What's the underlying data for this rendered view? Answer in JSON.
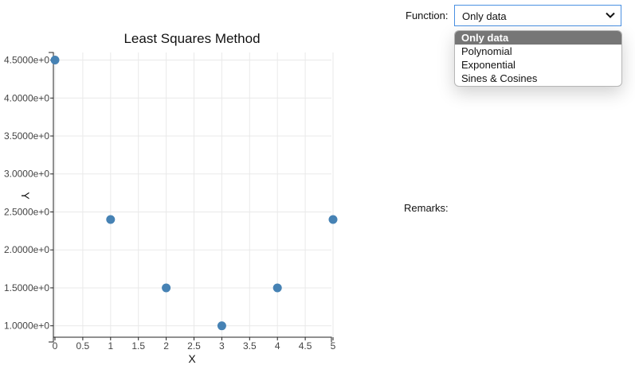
{
  "controls": {
    "function_label": "Function:",
    "selected_function": "Only data",
    "options": [
      "Only data",
      "Polynomial",
      "Exponential",
      "Sines & Cosines"
    ],
    "remarks_label": "Remarks:"
  },
  "chart_data": {
    "type": "scatter",
    "title": "Least Squares Method",
    "xlabel": "X",
    "ylabel": "Y",
    "x": [
      0,
      1,
      2,
      3,
      4,
      5
    ],
    "y": [
      4.5,
      2.4,
      1.5,
      1.0,
      1.5,
      2.4
    ],
    "xlim": [
      0,
      5
    ],
    "ylim": [
      0.85,
      4.6
    ],
    "x_ticks": [
      0,
      0.5,
      1,
      1.5,
      2,
      2.5,
      3,
      3.5,
      4,
      4.5,
      5
    ],
    "x_tick_labels": [
      "0",
      "0.5",
      "1",
      "1.5",
      "2",
      "2.5",
      "3",
      "3.5",
      "4",
      "4.5",
      "5"
    ],
    "y_ticks": [
      1.0,
      1.5,
      2.0,
      2.5,
      3.0,
      3.5,
      4.0,
      4.5
    ],
    "y_tick_labels": [
      "1.0000e+0",
      "1.5000e+0",
      "2.0000e+0",
      "2.5000e+0",
      "3.0000e+0",
      "3.5000e+0",
      "4.0000e+0",
      "4.5000e+0"
    ],
    "grid": true,
    "point_color": "#4682b4"
  }
}
